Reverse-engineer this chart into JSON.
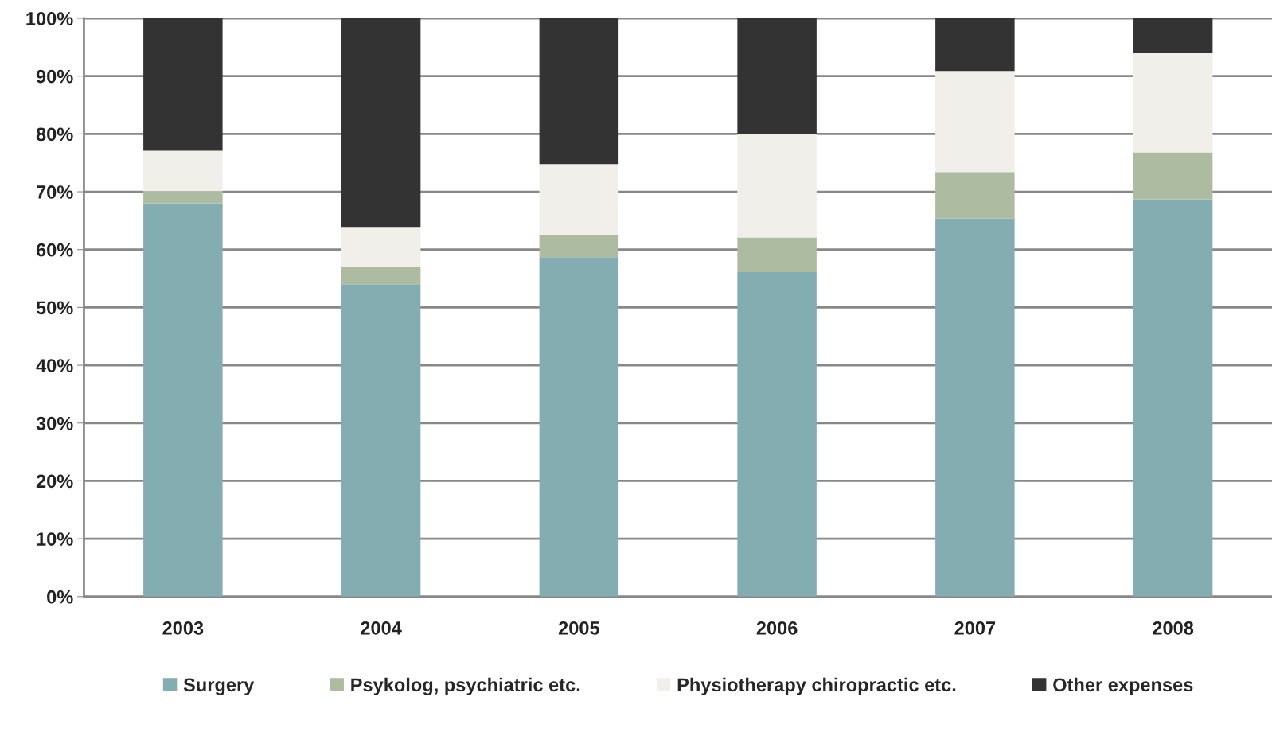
{
  "chart_data": {
    "type": "bar",
    "stacked": true,
    "categories": [
      "2003",
      "2004",
      "2005",
      "2006",
      "2007",
      "2008"
    ],
    "series": [
      {
        "name": "Surgery",
        "color": "#84adb2",
        "values": [
          68.0,
          54.0,
          58.7,
          56.1,
          65.4,
          68.7
        ]
      },
      {
        "name": "Psykolog, psychiatric etc.",
        "color": "#adbba0",
        "values": [
          2.1,
          3.1,
          3.9,
          6.0,
          8.0,
          8.1
        ]
      },
      {
        "name": "Physiotherapy chiropractic etc.",
        "color": "#f0efe9",
        "values": [
          7.0,
          6.8,
          12.2,
          17.9,
          17.5,
          17.2
        ]
      },
      {
        "name": "Other expenses",
        "color": "#333333",
        "values": [
          22.9,
          36.1,
          25.2,
          20.0,
          9.1,
          6.0
        ]
      }
    ],
    "ylim": [
      0,
      100
    ],
    "yticks": [
      {
        "value": 0,
        "label": "0%"
      },
      {
        "value": 10,
        "label": "10%"
      },
      {
        "value": 20,
        "label": "20%"
      },
      {
        "value": 30,
        "label": "30%"
      },
      {
        "value": 40,
        "label": "40%"
      },
      {
        "value": 50,
        "label": "50%"
      },
      {
        "value": 60,
        "label": "60%"
      },
      {
        "value": 70,
        "label": "70%"
      },
      {
        "value": 80,
        "label": "80%"
      },
      {
        "value": 90,
        "label": "90%"
      },
      {
        "value": 100,
        "label": "100%"
      }
    ],
    "grid": "y",
    "legend": "bottom"
  }
}
